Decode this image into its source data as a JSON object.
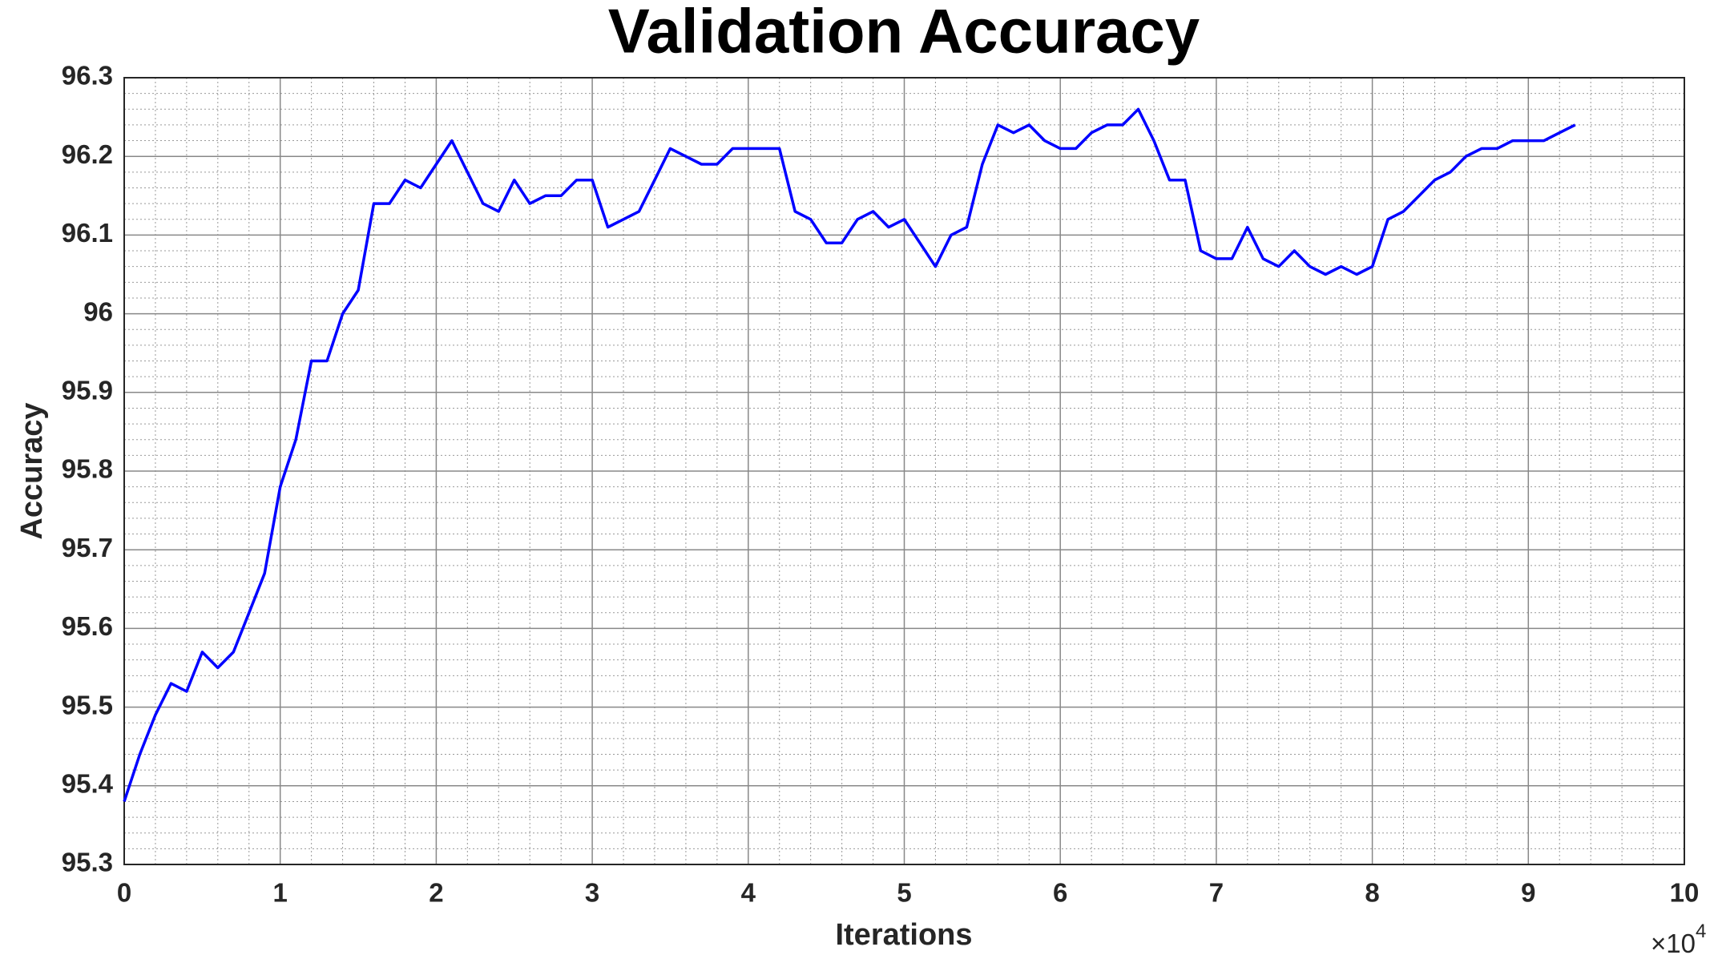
{
  "chart_data": {
    "type": "line",
    "title": "Validation Accuracy",
    "xlabel": "Iterations",
    "ylabel": "Accuracy",
    "x_multiplier": "×10",
    "x_multiplier_exponent": "4",
    "xlim": [
      0,
      100000
    ],
    "xticks": [
      0,
      {
        "value": 10000,
        "label": "1"
      },
      {
        "value": 20000,
        "label": "2"
      },
      {
        "value": 30000,
        "label": "3"
      },
      {
        "value": 40000,
        "label": "4"
      },
      {
        "value": 50000,
        "label": "5"
      },
      {
        "value": 60000,
        "label": "6"
      },
      {
        "value": 70000,
        "label": "7"
      },
      {
        "value": 80000,
        "label": "8"
      },
      {
        "value": 90000,
        "label": "9"
      },
      {
        "value": 100000,
        "label": "10"
      }
    ],
    "ylim": [
      95.3,
      96.3
    ],
    "yticks": [
      95.3,
      95.4,
      95.5,
      95.6,
      95.7,
      95.8,
      95.9,
      96,
      96.1,
      96.2,
      96.3
    ],
    "grid": true,
    "minor_grid": true,
    "x": [
      0,
      1000,
      2000,
      3000,
      4000,
      5000,
      6000,
      7000,
      8000,
      9000,
      10000,
      11000,
      12000,
      13000,
      14000,
      15000,
      16000,
      17000,
      18000,
      19000,
      20000,
      21000,
      22000,
      23000,
      24000,
      25000,
      26000,
      27000,
      28000,
      29000,
      30000,
      31000,
      32000,
      33000,
      34000,
      35000,
      36000,
      37000,
      38000,
      39000,
      40000,
      41000,
      42000,
      43000,
      44000,
      45000,
      46000,
      47000,
      48000,
      49000,
      50000,
      51000,
      52000,
      53000,
      54000,
      55000,
      56000,
      57000,
      58000,
      59000,
      60000,
      61000,
      62000,
      63000,
      64000,
      65000,
      66000,
      67000,
      68000,
      69000,
      70000,
      71000,
      72000,
      73000,
      74000,
      75000,
      76000,
      77000,
      78000,
      79000,
      80000,
      81000,
      82000,
      83000,
      84000,
      85000,
      86000,
      87000,
      88000,
      89000,
      90000,
      91000,
      92000,
      93000
    ],
    "series": [
      {
        "color": "#0000ff",
        "values": [
          95.38,
          95.44,
          95.49,
          95.53,
          95.52,
          95.57,
          95.55,
          95.57,
          95.62,
          95.67,
          95.78,
          95.84,
          95.94,
          95.94,
          96.0,
          96.03,
          96.14,
          96.14,
          96.17,
          96.16,
          96.19,
          96.22,
          96.18,
          96.14,
          96.13,
          96.17,
          96.14,
          96.15,
          96.15,
          96.17,
          96.17,
          96.11,
          96.12,
          96.13,
          96.17,
          96.21,
          96.2,
          96.19,
          96.19,
          96.21,
          96.21,
          96.21,
          96.21,
          96.13,
          96.12,
          96.09,
          96.09,
          96.12,
          96.13,
          96.11,
          96.12,
          96.09,
          96.06,
          96.1,
          96.11,
          96.19,
          96.24,
          96.23,
          96.24,
          96.22,
          96.21,
          96.21,
          96.23,
          96.24,
          96.24,
          96.26,
          96.22,
          96.17,
          96.17,
          96.08,
          96.07,
          96.07,
          96.11,
          96.07,
          96.06,
          96.08,
          96.06,
          96.05,
          96.06,
          96.05,
          96.06,
          96.12,
          96.13,
          96.15,
          96.17,
          96.18,
          96.2,
          96.21,
          96.21,
          96.22,
          96.22,
          96.22,
          96.23,
          96.24
        ]
      }
    ]
  }
}
